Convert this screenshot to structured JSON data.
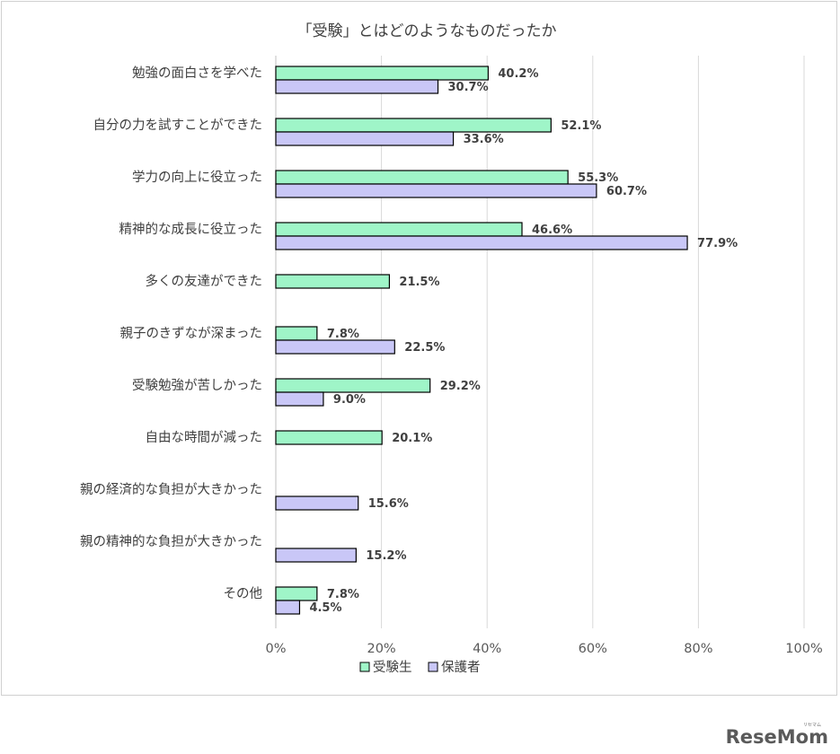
{
  "chart_data": {
    "type": "bar",
    "orientation": "horizontal",
    "title": "「受験」とはどのようなものだったか",
    "categories": [
      "勉強の面白さを学べた",
      "自分の力を試すことができた",
      "学力の向上に役立った",
      "精神的な成長に役立った",
      "多くの友達ができた",
      "親子のきずなが深まった",
      "受験勉強が苦しかった",
      "自由な時間が減った",
      "親の経済的な負担が大きかった",
      "親の精神的な負担が大きかった",
      "その他"
    ],
    "series": [
      {
        "name": "受験生",
        "color": "#9ff5c8",
        "values": [
          40.2,
          52.1,
          55.3,
          46.6,
          21.5,
          7.8,
          29.2,
          20.1,
          null,
          null,
          7.8
        ],
        "labels": [
          "40.2%",
          "52.1%",
          "55.3%",
          "46.6%",
          "21.5%",
          "7.8%",
          "29.2%",
          "20.1%",
          null,
          null,
          "7.8%"
        ]
      },
      {
        "name": "保護者",
        "color": "#c9c7f7",
        "values": [
          30.7,
          33.6,
          60.7,
          77.9,
          null,
          22.5,
          9.0,
          null,
          15.6,
          15.2,
          4.5
        ],
        "labels": [
          "30.7%",
          "33.6%",
          "60.7%",
          "77.9%",
          null,
          "22.5%",
          "9.0%",
          null,
          "15.6%",
          "15.2%",
          "4.5%"
        ]
      }
    ],
    "xlim": [
      0,
      100
    ],
    "xticks": [
      0,
      20,
      40,
      60,
      80,
      100
    ],
    "xtick_labels": [
      "0%",
      "20%",
      "40%",
      "60%",
      "80%",
      "100%"
    ],
    "grid": true,
    "legend": "bottom"
  },
  "watermark": {
    "text": "ReseMom",
    "small_text": "リセマム"
  }
}
